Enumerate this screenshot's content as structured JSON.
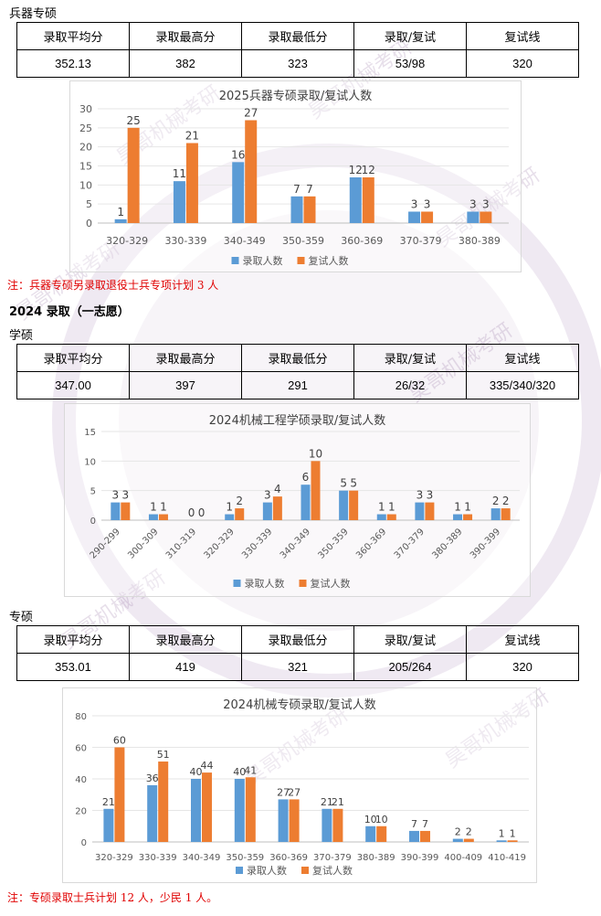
{
  "section1": {
    "title": "兵器专硕",
    "headers": [
      "录取平均分",
      "录取最高分",
      "录取最低分",
      "录取/复试",
      "复试线"
    ],
    "values": [
      "352.13",
      "382",
      "323",
      "53/98",
      "320"
    ],
    "note": "注：兵器专硕另录取退役士兵专项计划 3 人"
  },
  "section2": {
    "heading": "2024 录取（一志愿）",
    "sub1": "学硕",
    "table1": {
      "headers": [
        "录取平均分",
        "录取最高分",
        "录取最低分",
        "录取/复试",
        "复试线"
      ],
      "values": [
        "347.00",
        "397",
        "291",
        "26/32",
        "335/340/320"
      ]
    },
    "sub2": "专硕",
    "table2": {
      "headers": [
        "录取平均分",
        "录取最高分",
        "录取最低分",
        "录取/复试",
        "复试线"
      ],
      "values": [
        "353.01",
        "419",
        "321",
        "205/264",
        "320"
      ]
    },
    "note": "注：专硕录取士兵计划 12 人，少民 1 人。"
  },
  "charts": {
    "colors": {
      "admitted": "#5b9bd5",
      "retest": "#ed7d31"
    },
    "legend": {
      "admitted": "录取人数",
      "retest": "复试人数"
    }
  },
  "chart_data": [
    {
      "type": "bar",
      "title": "2025兵器专硕录取/复试人数",
      "categories": [
        "320-329",
        "330-339",
        "340-349",
        "350-359",
        "360-369",
        "370-379",
        "380-389"
      ],
      "series": [
        {
          "name": "录取人数",
          "values": [
            1,
            11,
            16,
            7,
            12,
            3,
            3
          ]
        },
        {
          "name": "复试人数",
          "values": [
            25,
            21,
            27,
            7,
            12,
            3,
            3
          ]
        }
      ],
      "yticks": [
        "0",
        "5",
        "10",
        "15",
        "20",
        "25",
        "30"
      ],
      "ylim": [
        0,
        30
      ],
      "legend": "bottom"
    },
    {
      "type": "bar",
      "title": "2024机械工程学硕录取/复试人数",
      "categories": [
        "290-299",
        "300-309",
        "310-319",
        "320-329",
        "330-339",
        "340-349",
        "350-359",
        "360-369",
        "370-379",
        "380-389",
        "390-399"
      ],
      "series": [
        {
          "name": "录取人数",
          "values": [
            3,
            1,
            0,
            1,
            3,
            6,
            5,
            1,
            3,
            1,
            2
          ]
        },
        {
          "name": "复试人数",
          "values": [
            3,
            1,
            0,
            2,
            4,
            10,
            5,
            1,
            3,
            1,
            2
          ]
        }
      ],
      "yticks": [
        "0",
        "5",
        "10",
        "15"
      ],
      "ylim": [
        0,
        15
      ],
      "legend": "bottom"
    },
    {
      "type": "bar",
      "title": "2024机械专硕录取/复试人数",
      "categories": [
        "320-329",
        "330-339",
        "340-349",
        "350-359",
        "360-369",
        "370-379",
        "380-389",
        "390-399",
        "400-409",
        "410-419"
      ],
      "series": [
        {
          "name": "录取人数",
          "values": [
            21,
            36,
            40,
            40,
            27,
            21,
            10,
            7,
            2,
            1
          ]
        },
        {
          "name": "复试人数",
          "values": [
            60,
            51,
            44,
            41,
            27,
            21,
            10,
            7,
            2,
            1
          ]
        }
      ],
      "yticks": [
        "0",
        "20",
        "40",
        "60",
        "80"
      ],
      "ylim": [
        0,
        80
      ],
      "legend": "bottom"
    }
  ]
}
